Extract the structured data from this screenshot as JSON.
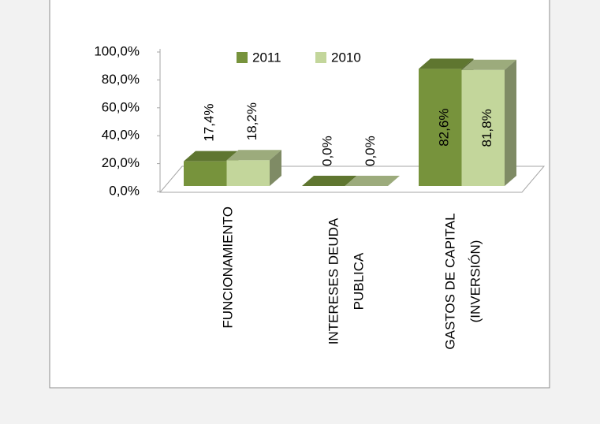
{
  "chart_data": {
    "type": "bar3d",
    "categories": [
      "FUNCIONAMIENTO",
      "INTERESES DEUDA PUBLICA",
      "GASTOS DE CAPITAL (INVERSIÓN)"
    ],
    "series": [
      {
        "name": "2011",
        "color": "#77933c",
        "values": [
          17.4,
          0.0,
          82.6
        ],
        "value_labels": [
          "17,4%",
          "0,0%",
          "82,6%"
        ]
      },
      {
        "name": "2010",
        "color": "#c3d69b",
        "values": [
          18.2,
          0.0,
          81.8
        ],
        "value_labels": [
          "18,2%",
          "0,0%",
          "81,8%"
        ]
      }
    ],
    "ylim": [
      0,
      100
    ],
    "yticks": [
      {
        "value": 0,
        "label": "0,0%"
      },
      {
        "value": 20,
        "label": "20,0%"
      },
      {
        "value": 40,
        "label": "40,0%"
      },
      {
        "value": 60,
        "label": "60,0%"
      },
      {
        "value": 80,
        "label": "80,0%"
      },
      {
        "value": 100,
        "label": "100,0%"
      }
    ],
    "legend": "top"
  }
}
